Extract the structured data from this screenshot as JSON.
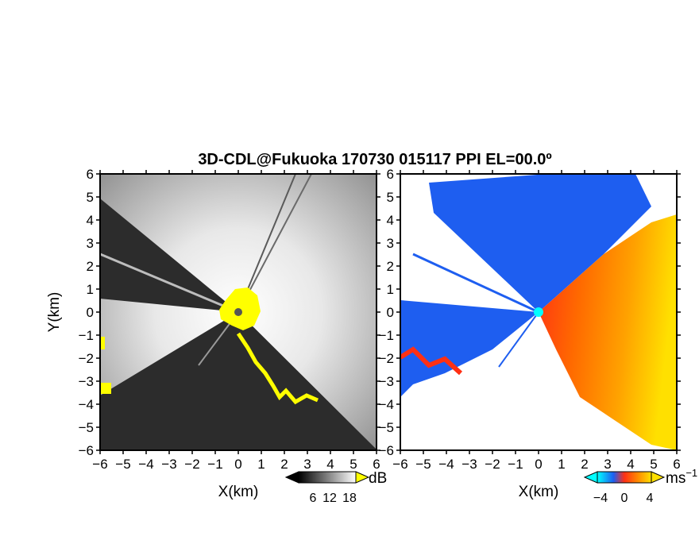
{
  "chart_data": {
    "type": "heatmap",
    "title": "3D-CDL@Fukuoka 170730 015117 PPI EL=00.0º",
    "panels": [
      {
        "name": "reflectivity",
        "xlabel": "X(km)",
        "ylabel": "Y(km)",
        "xlim": [
          -6,
          6
        ],
        "ylim": [
          -6,
          6
        ],
        "x_ticks": [
          "−6",
          "−5",
          "−4",
          "−3",
          "−2",
          "−1",
          "0",
          "1",
          "2",
          "3",
          "4",
          "5",
          "6"
        ],
        "y_ticks": [
          "6",
          "5",
          "4",
          "3",
          "2",
          "1",
          "0",
          "−1",
          "−2",
          "−3",
          "−4",
          "−5",
          "−6"
        ],
        "colorbar": {
          "unit": "dB",
          "ticks": [
            "6",
            "12",
            "18"
          ],
          "range": [
            0,
            24
          ]
        },
        "colormap": "grayscale",
        "highlight_color": "#ffff00"
      },
      {
        "name": "doppler-velocity",
        "xlabel": "X(km)",
        "ylabel": "",
        "xlim": [
          -6,
          6
        ],
        "ylim": [
          -6,
          6
        ],
        "x_ticks": [
          "−6",
          "−5",
          "−4",
          "−3",
          "−2",
          "−1",
          "0",
          "1",
          "2",
          "3",
          "4",
          "5",
          "6"
        ],
        "y_ticks": [
          "6",
          "5",
          "4",
          "3",
          "2",
          "1",
          "0",
          "−1",
          "−2",
          "−3",
          "−4",
          "−5",
          "−6"
        ],
        "colorbar": {
          "unit": "ms",
          "unit_exponent": "−1",
          "ticks": [
            "−4",
            "0",
            "4"
          ],
          "range": [
            -6,
            6
          ]
        },
        "colormap": "cyan-blue-red-orange-yellow"
      }
    ]
  },
  "colors": {
    "dark_background": "#2a2a2a",
    "bright_center": "#f2f2f2",
    "highlight": "#ffff00",
    "vel_cyan": "#00ffff",
    "vel_blue": "#1e5ef0",
    "vel_red": "#ff3014",
    "vel_orange": "#ff8a00",
    "vel_yellow": "#ffe000"
  }
}
